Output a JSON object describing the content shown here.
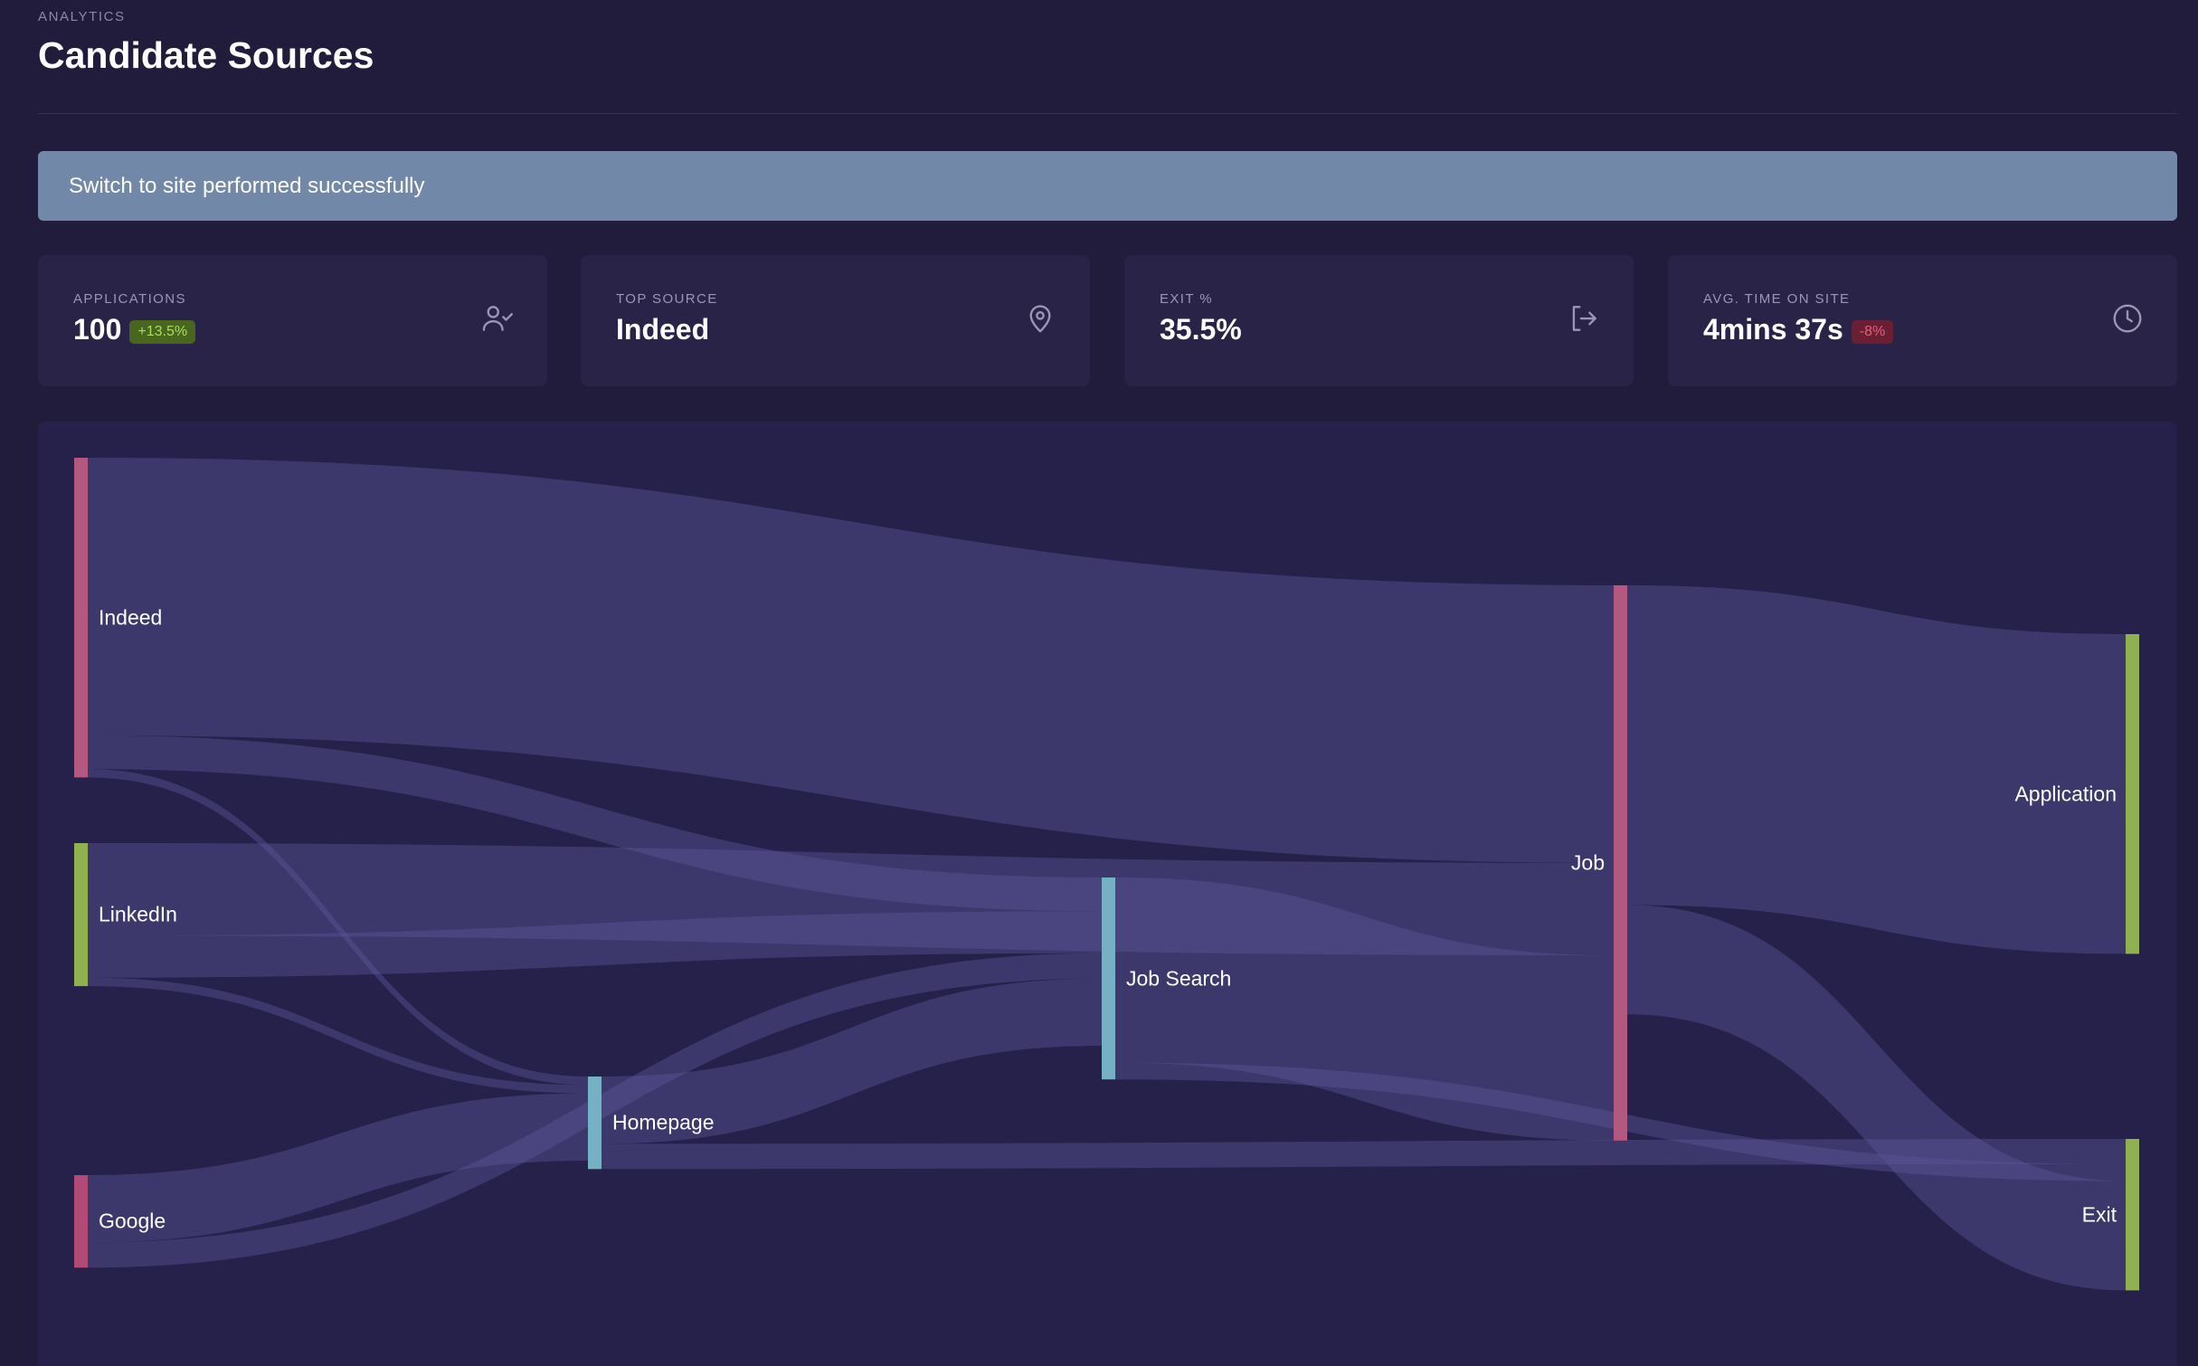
{
  "header": {
    "eyebrow": "ANALYTICS",
    "title": "Candidate Sources"
  },
  "alert": {
    "message": "Switch to site performed successfully",
    "color": "#7288a8"
  },
  "kpis": [
    {
      "label": "APPLICATIONS",
      "value": "100",
      "badge": "+13.5%",
      "trend": "up",
      "icon": "user-check-icon"
    },
    {
      "label": "TOP SOURCE",
      "value": "Indeed",
      "badge": "",
      "icon": "map-pin-icon"
    },
    {
      "label": "EXIT %",
      "value": "35.5%",
      "badge": "",
      "icon": "log-out-icon"
    },
    {
      "label": "AVG. TIME ON SITE",
      "value": "4mins 37s",
      "badge": "-8%",
      "trend": "down",
      "icon": "clock-icon"
    }
  ],
  "sankey": {
    "nodes": [
      {
        "id": "indeed",
        "label": "Indeed",
        "color": "#b3597f"
      },
      {
        "id": "linkedin",
        "label": "LinkedIn",
        "color": "#8fb14f"
      },
      {
        "id": "google",
        "label": "Google",
        "color": "#b14a74"
      },
      {
        "id": "homepage",
        "label": "Homepage",
        "color": "#75b0c4"
      },
      {
        "id": "jobsearch",
        "label": "Job Search",
        "color": "#75b0c4"
      },
      {
        "id": "job",
        "label": "Job",
        "color": "#b3597f"
      },
      {
        "id": "application",
        "label": "Application",
        "color": "#8fb14f"
      },
      {
        "id": "exit",
        "label": "Exit",
        "color": "#8fb14f"
      }
    ],
    "links": [
      {
        "source": "indeed",
        "target": "job",
        "value": 33
      },
      {
        "source": "indeed",
        "target": "jobsearch",
        "value": 4
      },
      {
        "source": "indeed",
        "target": "homepage",
        "value": 1
      },
      {
        "source": "linkedin",
        "target": "job",
        "value": 11
      },
      {
        "source": "linkedin",
        "target": "jobsearch",
        "value": 5
      },
      {
        "source": "linkedin",
        "target": "homepage",
        "value": 1
      },
      {
        "source": "google",
        "target": "homepage",
        "value": 8
      },
      {
        "source": "google",
        "target": "jobsearch",
        "value": 3
      },
      {
        "source": "homepage",
        "target": "jobsearch",
        "value": 8
      },
      {
        "source": "homepage",
        "target": "exit",
        "value": 3
      },
      {
        "source": "jobsearch",
        "target": "job",
        "value": 22
      },
      {
        "source": "jobsearch",
        "target": "exit",
        "value": 2
      },
      {
        "source": "job",
        "target": "application",
        "value": 38
      },
      {
        "source": "job",
        "target": "exit",
        "value": 13
      }
    ],
    "link_color": "#5c5597"
  }
}
